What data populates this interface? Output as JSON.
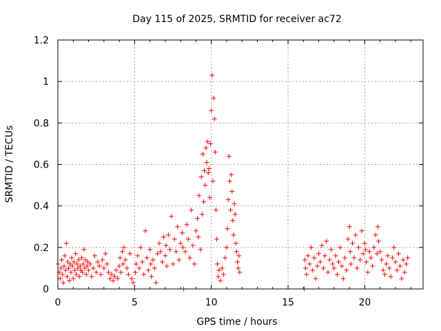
{
  "chart_data": {
    "type": "scatter",
    "title": "Day 115 of 2025, SRMTID for receiver ac72",
    "xlabel": "GPS time / hours",
    "ylabel": "SRMTID / TECUs",
    "xlim": [
      0,
      23.8
    ],
    "ylim": [
      0,
      1.2
    ],
    "xticks": [
      0,
      5,
      10,
      15,
      20
    ],
    "xtick_labels": [
      "0",
      "5",
      "10",
      "15",
      "20"
    ],
    "yticks": [
      0,
      0.2,
      0.4,
      0.6,
      0.8,
      1,
      1.2
    ],
    "ytick_labels": [
      "0",
      "0.2",
      "0.4",
      "0.6",
      "0.8",
      "1",
      "1.2"
    ],
    "grid": true,
    "marker": "+",
    "color": "#ff0000",
    "series": [
      {
        "name": "SRMTID",
        "points": [
          [
            0.0,
            0.12
          ],
          [
            0.1,
            0.08
          ],
          [
            0.15,
            0.05
          ],
          [
            0.2,
            0.1
          ],
          [
            0.25,
            0.14
          ],
          [
            0.3,
            0.07
          ],
          [
            0.35,
            0.03
          ],
          [
            0.4,
            0.11
          ],
          [
            0.45,
            0.16
          ],
          [
            0.5,
            0.09
          ],
          [
            0.55,
            0.22
          ],
          [
            0.6,
            0.06
          ],
          [
            0.65,
            0.13
          ],
          [
            0.7,
            0.1
          ],
          [
            0.75,
            0.04
          ],
          [
            0.8,
            0.12
          ],
          [
            0.85,
            0.08
          ],
          [
            0.9,
            0.15
          ],
          [
            0.95,
            0.11
          ],
          [
            1.0,
            0.05
          ],
          [
            1.05,
            0.13
          ],
          [
            1.1,
            0.09
          ],
          [
            1.15,
            0.17
          ],
          [
            1.2,
            0.07
          ],
          [
            1.25,
            0.12
          ],
          [
            1.3,
            0.1
          ],
          [
            1.35,
            0.14
          ],
          [
            1.4,
            0.06
          ],
          [
            1.45,
            0.11
          ],
          [
            1.5,
            0.09
          ],
          [
            1.55,
            0.15
          ],
          [
            1.6,
            0.08
          ],
          [
            1.65,
            0.12
          ],
          [
            1.7,
            0.19
          ],
          [
            1.75,
            0.1
          ],
          [
            1.8,
            0.14
          ],
          [
            1.85,
            0.07
          ],
          [
            1.9,
            0.11
          ],
          [
            1.95,
            0.13
          ],
          [
            2.0,
            0.09
          ],
          [
            2.1,
            0.12
          ],
          [
            2.2,
            0.06
          ],
          [
            2.3,
            0.1
          ],
          [
            2.4,
            0.16
          ],
          [
            2.5,
            0.08
          ],
          [
            2.6,
            0.13
          ],
          [
            2.7,
            0.11
          ],
          [
            2.8,
            0.07
          ],
          [
            2.9,
            0.14
          ],
          [
            3.0,
            0.1
          ],
          [
            3.1,
            0.17
          ],
          [
            3.2,
            0.12
          ],
          [
            3.3,
            0.08
          ],
          [
            3.4,
            0.05
          ],
          [
            3.5,
            0.07
          ],
          [
            3.6,
            0.04
          ],
          [
            3.7,
            0.06
          ],
          [
            3.8,
            0.09
          ],
          [
            3.9,
            0.05
          ],
          [
            4.0,
            0.11
          ],
          [
            4.05,
            0.15
          ],
          [
            4.1,
            0.08
          ],
          [
            4.2,
            0.18
          ],
          [
            4.25,
            0.12
          ],
          [
            4.3,
            0.2
          ],
          [
            4.4,
            0.14
          ],
          [
            4.5,
            0.1
          ],
          [
            4.6,
            0.07
          ],
          [
            4.7,
            0.17
          ],
          [
            4.8,
            0.05
          ],
          [
            4.9,
            0.03
          ],
          [
            5.0,
            0.0
          ],
          [
            5.05,
            0.08
          ],
          [
            5.1,
            0.12
          ],
          [
            5.2,
            0.16
          ],
          [
            5.3,
            0.1
          ],
          [
            5.4,
            0.2
          ],
          [
            5.5,
            0.13
          ],
          [
            5.6,
            0.07
          ],
          [
            5.7,
            0.28
          ],
          [
            5.8,
            0.15
          ],
          [
            5.9,
            0.09
          ],
          [
            6.0,
            0.19
          ],
          [
            6.05,
            0.12
          ],
          [
            6.1,
            0.06
          ],
          [
            6.2,
            0.14
          ],
          [
            6.3,
            0.1
          ],
          [
            6.4,
            0.03
          ],
          [
            6.5,
            0.17
          ],
          [
            6.6,
            0.22
          ],
          [
            6.7,
            0.18
          ],
          [
            6.8,
            0.13
          ],
          [
            6.9,
            0.25
          ],
          [
            7.0,
            0.16
          ],
          [
            7.05,
            0.21
          ],
          [
            7.1,
            0.11
          ],
          [
            7.2,
            0.26
          ],
          [
            7.3,
            0.19
          ],
          [
            7.4,
            0.35
          ],
          [
            7.5,
            0.12
          ],
          [
            7.6,
            0.24
          ],
          [
            7.7,
            0.18
          ],
          [
            7.8,
            0.3
          ],
          [
            7.9,
            0.14
          ],
          [
            8.0,
            0.22
          ],
          [
            8.1,
            0.27
          ],
          [
            8.15,
            0.2
          ],
          [
            8.2,
            0.0
          ],
          [
            8.3,
            0.18
          ],
          [
            8.4,
            0.31
          ],
          [
            8.5,
            0.24
          ],
          [
            8.6,
            0.15
          ],
          [
            8.7,
            0.38
          ],
          [
            8.8,
            0.21
          ],
          [
            8.9,
            0.12
          ],
          [
            9.0,
            0.28
          ],
          [
            9.1,
            0.34
          ],
          [
            9.15,
            0.25
          ],
          [
            9.2,
            0.45
          ],
          [
            9.3,
            0.19
          ],
          [
            9.35,
            0.54
          ],
          [
            9.4,
            0.36
          ],
          [
            9.45,
            0.65
          ],
          [
            9.5,
            0.42
          ],
          [
            9.55,
            0.57
          ],
          [
            9.6,
            0.5
          ],
          [
            9.65,
            0.68
          ],
          [
            9.7,
            0.61
          ],
          [
            9.75,
            0.71
          ],
          [
            9.8,
            0.56
          ],
          [
            9.85,
            0.58
          ],
          [
            9.9,
            0.44
          ],
          [
            9.95,
            0.7
          ],
          [
            10.0,
            0.86
          ],
          [
            10.05,
            1.03
          ],
          [
            10.1,
            0.52
          ],
          [
            10.15,
            0.92
          ],
          [
            10.2,
            0.82
          ],
          [
            10.25,
            0.66
          ],
          [
            10.3,
            0.38
          ],
          [
            10.35,
            0.24
          ],
          [
            10.4,
            0.12
          ],
          [
            10.45,
            0.06
          ],
          [
            10.5,
            0.09
          ],
          [
            10.6,
            0.04
          ],
          [
            10.7,
            0.1
          ],
          [
            10.8,
            0.07
          ],
          [
            10.9,
            0.15
          ],
          [
            11.0,
            0.2
          ],
          [
            11.05,
            0.29
          ],
          [
            11.1,
            0.43
          ],
          [
            11.15,
            0.64
          ],
          [
            11.2,
            0.52
          ],
          [
            11.25,
            0.38
          ],
          [
            11.3,
            0.55
          ],
          [
            11.35,
            0.47
          ],
          [
            11.4,
            0.33
          ],
          [
            11.45,
            0.26
          ],
          [
            11.5,
            0.41
          ],
          [
            11.55,
            0.36
          ],
          [
            11.6,
            0.22
          ],
          [
            11.65,
            0.18
          ],
          [
            11.7,
            0.13
          ],
          [
            11.75,
            0.1
          ],
          [
            11.8,
            0.16
          ],
          [
            11.85,
            0.08
          ],
          [
            16.05,
            0.0
          ],
          [
            16.1,
            0.14
          ],
          [
            16.15,
            0.1
          ],
          [
            16.2,
            0.07
          ],
          [
            16.3,
            0.16
          ],
          [
            16.4,
            0.12
          ],
          [
            16.5,
            0.2
          ],
          [
            16.6,
            0.09
          ],
          [
            16.7,
            0.15
          ],
          [
            16.8,
            0.05
          ],
          [
            16.9,
            0.11
          ],
          [
            17.0,
            0.17
          ],
          [
            17.1,
            0.13
          ],
          [
            17.2,
            0.21
          ],
          [
            17.3,
            0.1
          ],
          [
            17.4,
            0.16
          ],
          [
            17.5,
            0.23
          ],
          [
            17.6,
            0.08
          ],
          [
            17.7,
            0.14
          ],
          [
            17.8,
            0.19
          ],
          [
            17.9,
            0.12
          ],
          [
            18.0,
            0.1
          ],
          [
            18.1,
            0.16
          ],
          [
            18.2,
            0.07
          ],
          [
            18.3,
            0.13
          ],
          [
            18.4,
            0.2
          ],
          [
            18.5,
            0.11
          ],
          [
            18.6,
            0.05
          ],
          [
            18.7,
            0.15
          ],
          [
            18.8,
            0.09
          ],
          [
            18.9,
            0.24
          ],
          [
            19.0,
            0.3
          ],
          [
            19.05,
            0.18
          ],
          [
            19.1,
            0.12
          ],
          [
            19.2,
            0.22
          ],
          [
            19.3,
            0.15
          ],
          [
            19.4,
            0.26
          ],
          [
            19.5,
            0.1
          ],
          [
            19.6,
            0.2
          ],
          [
            19.7,
            0.14
          ],
          [
            19.8,
            0.28
          ],
          [
            19.9,
            0.17
          ],
          [
            20.0,
            0.22
          ],
          [
            20.05,
            0.19
          ],
          [
            20.1,
            0.13
          ],
          [
            20.2,
            0.08
          ],
          [
            20.3,
            0.18
          ],
          [
            20.4,
            0.15
          ],
          [
            20.5,
            0.11
          ],
          [
            20.6,
            0.2
          ],
          [
            20.7,
            0.26
          ],
          [
            20.8,
            0.17
          ],
          [
            20.85,
            0.3
          ],
          [
            20.9,
            0.23
          ],
          [
            21.0,
            0.18
          ],
          [
            21.1,
            0.14
          ],
          [
            21.2,
            0.09
          ],
          [
            21.3,
            0.07
          ],
          [
            21.4,
            0.12
          ],
          [
            21.5,
            0.16
          ],
          [
            21.6,
            0.1
          ],
          [
            21.7,
            0.06
          ],
          [
            21.8,
            0.15
          ],
          [
            21.9,
            0.2
          ],
          [
            22.0,
            0.13
          ],
          [
            22.1,
            0.09
          ],
          [
            22.2,
            0.17
          ],
          [
            22.3,
            0.11
          ],
          [
            22.4,
            0.05
          ],
          [
            22.5,
            0.14
          ],
          [
            22.6,
            0.08
          ],
          [
            22.7,
            0.12
          ],
          [
            22.8,
            0.15
          ]
        ]
      }
    ]
  }
}
